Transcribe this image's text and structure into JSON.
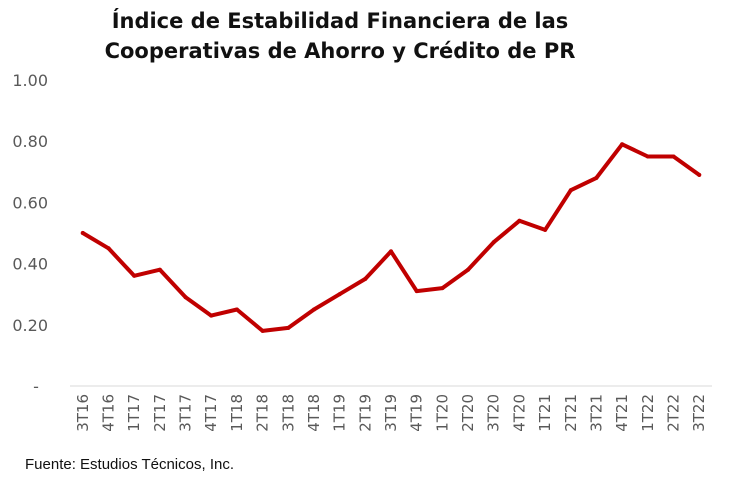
{
  "chart_data": {
    "type": "line",
    "title_lines": [
      "Índice de Estabilidad Financiera de las",
      "Cooperativas de Ahorro y Crédito de PR"
    ],
    "xlabel": "",
    "ylabel": "",
    "ylim": [
      0,
      1.0
    ],
    "y_ticks": [
      {
        "value": 0,
        "label": "-"
      },
      {
        "value": 0.2,
        "label": "0.20"
      },
      {
        "value": 0.4,
        "label": "0.40"
      },
      {
        "value": 0.6,
        "label": "0.60"
      },
      {
        "value": 0.8,
        "label": "0.80"
      },
      {
        "value": 1.0,
        "label": "1.00"
      }
    ],
    "grid": false,
    "categories": [
      "3T16",
      "4T16",
      "1T17",
      "2T17",
      "3T17",
      "4T17",
      "1T18",
      "2T18",
      "3T18",
      "4T18",
      "1T19",
      "2T19",
      "3T19",
      "4T19",
      "1T20",
      "2T20",
      "3T20",
      "4T20",
      "1T21",
      "2T21",
      "3T21",
      "4T21",
      "1T22",
      "2T22",
      "3T22"
    ],
    "series": [
      {
        "color": "#C00000",
        "values": [
          0.5,
          0.45,
          0.36,
          0.38,
          0.29,
          0.23,
          0.25,
          0.18,
          0.19,
          0.25,
          0.3,
          0.35,
          0.44,
          0.31,
          0.32,
          0.38,
          0.47,
          0.54,
          0.51,
          0.64,
          0.68,
          0.79,
          0.75,
          0.75,
          0.69
        ]
      }
    ]
  },
  "source": "Fuente: Estudios Técnicos, Inc."
}
